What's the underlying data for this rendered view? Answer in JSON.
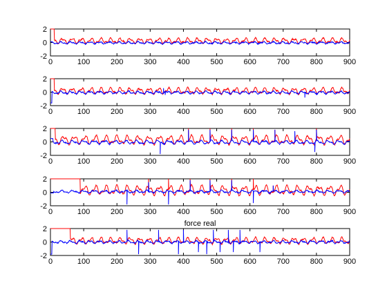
{
  "chart_data": [
    {
      "type": "line",
      "title": "",
      "xlim": [
        0,
        900
      ],
      "ylim": [
        -2,
        2
      ],
      "xticks": [
        0,
        100,
        200,
        300,
        400,
        500,
        600,
        700,
        800,
        900
      ],
      "yticks": [
        -2,
        0,
        2
      ],
      "grid": false,
      "legend": "none",
      "series": [
        {
          "color": "#ff0000",
          "start_level": 2.0,
          "start_until_x": 12,
          "baseline": 0.25,
          "oscillation": 0.3,
          "period": 29,
          "spikes": []
        },
        {
          "color": "#0000ff",
          "start_level": 0.1,
          "start_until_x": 6,
          "baseline": -0.05,
          "oscillation": 0.12,
          "period": 29,
          "spikes": []
        }
      ]
    },
    {
      "type": "line",
      "title": "",
      "xlim": [
        0,
        900
      ],
      "ylim": [
        -2,
        2
      ],
      "xticks": [
        0,
        100,
        200,
        300,
        400,
        500,
        600,
        700,
        800,
        900
      ],
      "yticks": [
        -2,
        0,
        2
      ],
      "grid": false,
      "legend": "none",
      "series": [
        {
          "color": "#ff0000",
          "start_level": 2.0,
          "start_until_x": 12,
          "baseline": 0.2,
          "oscillation": 0.35,
          "period": 29,
          "spikes": []
        },
        {
          "color": "#0000ff",
          "start_level": -1.6,
          "start_until_x": 5,
          "baseline": -0.05,
          "oscillation": 0.15,
          "period": 29,
          "spikes": [
            [
              340,
              0.6
            ],
            [
              345,
              -0.4
            ],
            [
              765,
              -0.8
            ]
          ]
        }
      ]
    },
    {
      "type": "line",
      "title": "",
      "xlim": [
        0,
        900
      ],
      "ylim": [
        -2,
        2
      ],
      "xticks": [
        0,
        100,
        200,
        300,
        400,
        500,
        600,
        700,
        800,
        900
      ],
      "yticks": [
        -2,
        0,
        2
      ],
      "grid": false,
      "legend": "none",
      "series": [
        {
          "color": "#ff0000",
          "start_level": 2.0,
          "start_until_x": 15,
          "baseline": 0.3,
          "oscillation": 0.5,
          "period": 32,
          "spikes": [
            [
              415,
              2.0
            ],
            [
              480,
              2.0
            ],
            [
              545,
              2.0
            ],
            [
              610,
              2.0
            ],
            [
              675,
              1.8
            ],
            [
              800,
              2.0
            ]
          ]
        },
        {
          "color": "#0000ff",
          "start_level": 0.5,
          "start_until_x": 8,
          "baseline": -0.05,
          "oscillation": 0.2,
          "period": 32,
          "spikes": [
            [
              330,
              -1.8
            ],
            [
              415,
              1.8
            ],
            [
              480,
              1.8
            ],
            [
              545,
              1.8
            ],
            [
              610,
              1.8
            ],
            [
              675,
              1.8
            ],
            [
              735,
              1.6
            ],
            [
              800,
              1.8
            ],
            [
              795,
              -1.5
            ]
          ]
        }
      ]
    },
    {
      "type": "line",
      "title": "",
      "xlim": [
        0,
        900
      ],
      "ylim": [
        -2,
        2
      ],
      "xticks": [
        0,
        100,
        200,
        300,
        400,
        500,
        600,
        700,
        800,
        900
      ],
      "yticks": [
        -2,
        0,
        2
      ],
      "grid": false,
      "legend": "none",
      "series": [
        {
          "color": "#ff0000",
          "start_level": 2.0,
          "start_until_x": 90,
          "baseline": 0.3,
          "oscillation": 0.55,
          "period": 32,
          "spikes": [
            [
              295,
              2.0
            ],
            [
              355,
              2.0
            ],
            [
              420,
              2.0
            ],
            [
              480,
              2.0
            ],
            [
              545,
              2.0
            ],
            [
              610,
              2.0
            ],
            [
              670,
              1.0
            ]
          ]
        },
        {
          "color": "#0000ff",
          "start_level": -0.1,
          "start_until_x": 10,
          "baseline": 0.1,
          "oscillation": 0.15,
          "period": 32,
          "spikes": [
            [
              230,
              -1.8
            ],
            [
              295,
              1.5
            ],
            [
              355,
              -1.8
            ],
            [
              420,
              1.8
            ],
            [
              480,
              1.8
            ],
            [
              545,
              1.8
            ],
            [
              610,
              1.8
            ],
            [
              670,
              1.0
            ],
            [
              610,
              -1.6
            ]
          ]
        }
      ]
    },
    {
      "type": "line",
      "title": "force real",
      "xlim": [
        0,
        900
      ],
      "ylim": [
        -2,
        2
      ],
      "xticks": [
        0,
        100,
        200,
        300,
        400,
        500,
        600,
        700,
        800,
        900
      ],
      "yticks": [
        -2,
        0,
        2
      ],
      "grid": false,
      "legend": "none",
      "series": [
        {
          "color": "#ff0000",
          "start_level": 2.0,
          "start_until_x": 60,
          "baseline": 0.2,
          "oscillation": 0.35,
          "period": 29,
          "spikes": []
        },
        {
          "color": "#0000ff",
          "start_level": -1.8,
          "start_until_x": 5,
          "baseline": 0.0,
          "oscillation": 0.15,
          "period": 29,
          "spikes": [
            [
              230,
              1.8
            ],
            [
              265,
              -1.8
            ],
            [
              325,
              1.8
            ],
            [
              385,
              -1.8
            ],
            [
              400,
              1.8
            ],
            [
              445,
              -1.5
            ],
            [
              470,
              -1.8
            ],
            [
              490,
              1.8
            ],
            [
              510,
              -1.5
            ],
            [
              535,
              1.8
            ],
            [
              550,
              -1.5
            ],
            [
              570,
              1.8
            ],
            [
              630,
              -1.5
            ]
          ]
        }
      ]
    }
  ]
}
